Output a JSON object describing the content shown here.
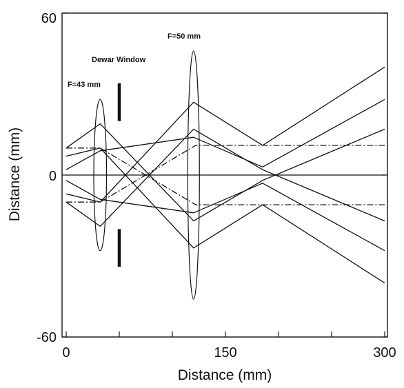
{
  "chart_data": {
    "type": "line",
    "title": "",
    "xlabel": "Distance (mm)",
    "ylabel": "Distance (mm)",
    "xlim": [
      0,
      300
    ],
    "ylim": [
      -60,
      60
    ],
    "x_tick_labels": [
      "0",
      "150",
      "300"
    ],
    "y_tick_labels": [
      "60",
      "0",
      "-60"
    ],
    "grid": false,
    "annotations": {
      "lens1": "F=43 mm",
      "lens2": "F=50 mm",
      "window": "Dewar Window"
    },
    "elements": {
      "lens1": {
        "x": 32,
        "half_height": 28,
        "half_width": 12
      },
      "lens2": {
        "x": 120,
        "half_height": 46,
        "half_width": 11
      },
      "window": {
        "x": 50,
        "segments": [
          [
            20,
            34
          ],
          [
            -34,
            -20
          ]
        ]
      }
    },
    "rays": [
      {
        "style": "solid",
        "points": [
          [
            0,
            10
          ],
          [
            32,
            19
          ],
          [
            120,
            -17
          ],
          [
            185,
            -2
          ],
          [
            300,
            17
          ]
        ]
      },
      {
        "style": "solid",
        "points": [
          [
            0,
            -10
          ],
          [
            32,
            -19
          ],
          [
            120,
            17
          ],
          [
            185,
            2
          ],
          [
            300,
            -17
          ]
        ]
      },
      {
        "style": "solid",
        "points": [
          [
            0,
            7
          ],
          [
            32,
            10
          ],
          [
            120,
            -27
          ],
          [
            185,
            -11
          ],
          [
            300,
            -40
          ]
        ]
      },
      {
        "style": "solid",
        "points": [
          [
            0,
            -7
          ],
          [
            32,
            -10
          ],
          [
            120,
            27
          ],
          [
            185,
            11
          ],
          [
            300,
            40
          ]
        ]
      },
      {
        "style": "solid",
        "points": [
          [
            0,
            2
          ],
          [
            32,
            9
          ],
          [
            120,
            14
          ],
          [
            185,
            3
          ],
          [
            300,
            28
          ]
        ]
      },
      {
        "style": "solid",
        "points": [
          [
            0,
            -2
          ],
          [
            32,
            -9
          ],
          [
            120,
            -14
          ],
          [
            185,
            -3
          ],
          [
            300,
            -28
          ]
        ]
      },
      {
        "style": "solid",
        "points": [
          [
            0,
            0
          ],
          [
            300,
            0
          ]
        ]
      },
      {
        "style": "dashdot",
        "points": [
          [
            0,
            10
          ],
          [
            32,
            10
          ],
          [
            122,
            -11
          ],
          [
            300,
            -11
          ]
        ]
      },
      {
        "style": "dashdot",
        "points": [
          [
            0,
            -10
          ],
          [
            32,
            -10
          ],
          [
            122,
            11
          ],
          [
            300,
            11
          ]
        ]
      }
    ]
  }
}
